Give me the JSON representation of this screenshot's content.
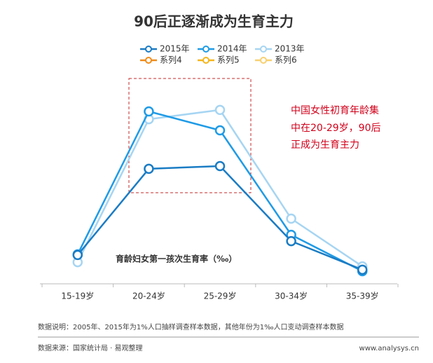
{
  "chart_data": {
    "type": "line",
    "title": "90后正逐渐成为生育主力",
    "y_label": "育龄妇女第一孩次生育率（‰）",
    "annotation": [
      "中国女性初育年龄集",
      "中在20-29岁，90后",
      "正成为生育主力"
    ],
    "categories": [
      "15-19岁",
      "20-24岁",
      "25-29岁",
      "30-34岁",
      "35-39岁"
    ],
    "series": [
      {
        "name": "2015年",
        "color": "#1a7cc4",
        "values": [
          13.7,
          54.7,
          56,
          20.3,
          6.7
        ]
      },
      {
        "name": "2014年",
        "color": "#1f9be6",
        "values": [
          14,
          82,
          73,
          23.3,
          6
        ]
      },
      {
        "name": "2013年",
        "color": "#a6d5f2",
        "values": [
          10.3,
          78.3,
          82.7,
          31,
          8.3
        ]
      },
      {
        "name": "系列4",
        "color": "#f08c1a",
        "values": [
          null,
          null,
          null,
          null,
          null
        ]
      },
      {
        "name": "系列5",
        "color": "#f5b51b",
        "values": [
          null,
          null,
          null,
          null,
          null
        ]
      },
      {
        "name": "系列6",
        "color": "#f7d070",
        "values": [
          null,
          null,
          null,
          null,
          null
        ]
      }
    ],
    "ylim": [
      0,
      100
    ],
    "note": "数据说明：2005年、2015年为1%人口抽样调查样本数据，其他年份为1‰人口变动调查样本数据",
    "source": "数据来源：国家统计局 · 易观整理",
    "website": "www.analysys.cn"
  }
}
